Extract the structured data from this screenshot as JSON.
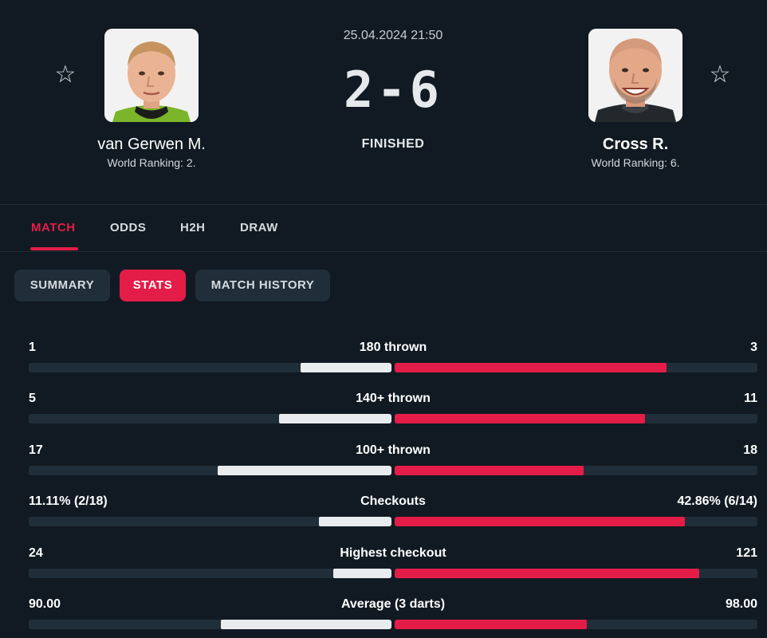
{
  "match": {
    "datetime": "25.04.2024 21:50",
    "score": "2-6",
    "status": "FINISHED"
  },
  "home": {
    "name": "van Gerwen M.",
    "ranking": "World Ranking: 2."
  },
  "away": {
    "name": "Cross R.",
    "ranking": "World Ranking: 6."
  },
  "tabs": [
    "MATCH",
    "ODDS",
    "H2H",
    "DRAW"
  ],
  "active_tab": "MATCH",
  "subtabs": [
    "SUMMARY",
    "STATS",
    "MATCH HISTORY"
  ],
  "active_subtab": "STATS",
  "stats": [
    {
      "label": "180 thrown",
      "home": "1",
      "away": "3",
      "home_share": 0.25,
      "away_share": 0.75
    },
    {
      "label": "140+ thrown",
      "home": "5",
      "away": "11",
      "home_share": 0.31,
      "away_share": 0.69
    },
    {
      "label": "100+ thrown",
      "home": "17",
      "away": "18",
      "home_share": 0.48,
      "away_share": 0.52
    },
    {
      "label": "Checkouts",
      "home": "11.11% (2/18)",
      "away": "42.86% (6/14)",
      "home_share": 0.2,
      "away_share": 0.8
    },
    {
      "label": "Highest checkout",
      "home": "24",
      "away": "121",
      "home_share": 0.16,
      "away_share": 0.84
    },
    {
      "label": "Average (3 darts)",
      "home": "90.00",
      "away": "98.00",
      "home_share": 0.47,
      "away_share": 0.53
    }
  ],
  "colors": {
    "accent": "#e41c48",
    "background": "#111a22",
    "track": "#1f2e38",
    "home_bar": "#e9ecee"
  },
  "icons": {
    "favorite": "star-outline-icon"
  }
}
